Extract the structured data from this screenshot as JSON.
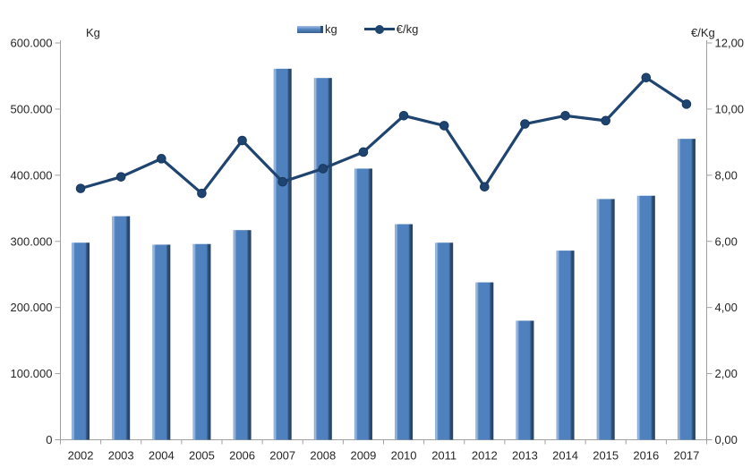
{
  "chart_data": {
    "type": "bar+line",
    "title": "",
    "categories": [
      "2002",
      "2003",
      "2004",
      "2005",
      "2006",
      "2007",
      "2008",
      "2009",
      "2010",
      "2011",
      "2012",
      "2013",
      "2014",
      "2015",
      "2016",
      "2017"
    ],
    "series": [
      {
        "name": "kg",
        "type": "bar",
        "axis": "left",
        "values": [
          298000,
          338000,
          295000,
          296000,
          317000,
          561000,
          547000,
          410000,
          326000,
          298000,
          238000,
          180000,
          286000,
          364000,
          369000,
          455000
        ]
      },
      {
        "name": "€/kg",
        "type": "line",
        "axis": "right",
        "values": [
          7.6,
          7.95,
          8.5,
          7.45,
          9.05,
          7.8,
          8.2,
          8.7,
          9.8,
          9.5,
          7.65,
          9.55,
          9.8,
          9.65,
          10.95,
          10.15
        ]
      }
    ],
    "left_axis": {
      "title": "Kg",
      "min": 0,
      "max": 600000,
      "step": 100000,
      "tick_labels": [
        "600.000",
        "500.000",
        "400.000",
        "300.000",
        "200.000",
        "100.000",
        "0"
      ]
    },
    "right_axis": {
      "title": "€/Kg",
      "min": 0,
      "max": 12,
      "step": 2,
      "tick_labels": [
        "12,00",
        "10,00",
        "8,00",
        "6,00",
        "4,00",
        "2,00",
        "0,00"
      ]
    },
    "legend": {
      "position": "top-center",
      "items": [
        {
          "label": "kg"
        },
        {
          "label": "€/kg"
        }
      ]
    },
    "grid": false
  },
  "colors": {
    "bar_edge": "#6f99cb",
    "bar_highlight": "#a5c0e5",
    "bar_main": "#4e81bd",
    "bar_dark_side": "#2d4f77",
    "bar_dark_edge": "#263f5e",
    "line": "#1f4470",
    "line_stroke": "#17375e",
    "axis": "#a0a0a0",
    "text": "#262626"
  }
}
